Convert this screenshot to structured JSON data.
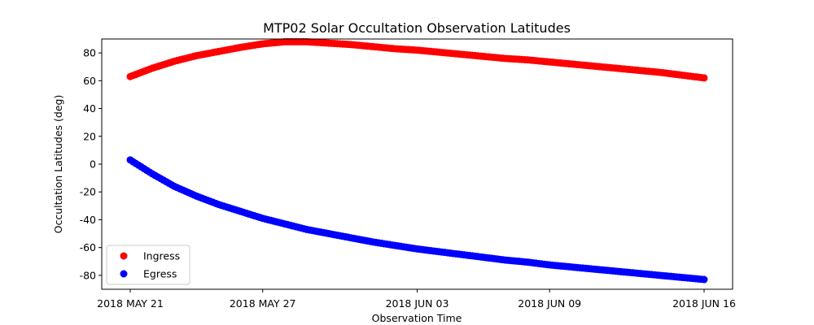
{
  "chart_data": {
    "type": "scatter",
    "title": "MTP02 Solar Occultation Observation Latitudes",
    "xlabel": "Observation Time",
    "ylabel": "Occultation Latitudes (deg)",
    "x_range": [
      "2018-05-21",
      "2018-06-16"
    ],
    "ylim": [
      -90,
      90
    ],
    "y_ticks": [
      -80,
      -60,
      -40,
      -20,
      0,
      20,
      40,
      60,
      80
    ],
    "x_ticks": [
      {
        "date": "2018-05-21",
        "label": "2018 MAY 21"
      },
      {
        "date": "2018-05-27",
        "label": "2018 MAY 27"
      },
      {
        "date": "2018-06-03",
        "label": "2018 JUN 03"
      },
      {
        "date": "2018-06-09",
        "label": "2018 JUN 09"
      },
      {
        "date": "2018-06-16",
        "label": "2018 JUN 16"
      }
    ],
    "grid": false,
    "legend_position": "lower-left",
    "series": [
      {
        "name": "Ingress",
        "color": "#ff0000",
        "points": [
          [
            "2018-05-21",
            63
          ],
          [
            "2018-05-22",
            69
          ],
          [
            "2018-05-23",
            74
          ],
          [
            "2018-05-24",
            78
          ],
          [
            "2018-05-25",
            81
          ],
          [
            "2018-05-26",
            84
          ],
          [
            "2018-05-27",
            86.5
          ],
          [
            "2018-05-28",
            88
          ],
          [
            "2018-05-29",
            88
          ],
          [
            "2018-05-30",
            87
          ],
          [
            "2018-05-31",
            86
          ],
          [
            "2018-06-01",
            84.5
          ],
          [
            "2018-06-02",
            83
          ],
          [
            "2018-06-03",
            82
          ],
          [
            "2018-06-04",
            80.5
          ],
          [
            "2018-06-05",
            79
          ],
          [
            "2018-06-06",
            77.5
          ],
          [
            "2018-06-07",
            76
          ],
          [
            "2018-06-08",
            75
          ],
          [
            "2018-06-09",
            73.5
          ],
          [
            "2018-06-10",
            72
          ],
          [
            "2018-06-11",
            70.5
          ],
          [
            "2018-06-12",
            69
          ],
          [
            "2018-06-13",
            67.5
          ],
          [
            "2018-06-14",
            66
          ],
          [
            "2018-06-15",
            64
          ],
          [
            "2018-06-16",
            62
          ]
        ]
      },
      {
        "name": "Egress",
        "color": "#0000ff",
        "points": [
          [
            "2018-05-21",
            3
          ],
          [
            "2018-05-22",
            -7
          ],
          [
            "2018-05-23",
            -16
          ],
          [
            "2018-05-24",
            -23
          ],
          [
            "2018-05-25",
            -29
          ],
          [
            "2018-05-26",
            -34
          ],
          [
            "2018-05-27",
            -39
          ],
          [
            "2018-05-28",
            -43
          ],
          [
            "2018-05-29",
            -47
          ],
          [
            "2018-05-30",
            -50
          ],
          [
            "2018-05-31",
            -53
          ],
          [
            "2018-06-01",
            -56
          ],
          [
            "2018-06-02",
            -58.5
          ],
          [
            "2018-06-03",
            -61
          ],
          [
            "2018-06-04",
            -63
          ],
          [
            "2018-06-05",
            -65
          ],
          [
            "2018-06-06",
            -67
          ],
          [
            "2018-06-07",
            -69
          ],
          [
            "2018-06-08",
            -70.5
          ],
          [
            "2018-06-09",
            -72.5
          ],
          [
            "2018-06-10",
            -74
          ],
          [
            "2018-06-11",
            -75.5
          ],
          [
            "2018-06-12",
            -77
          ],
          [
            "2018-06-13",
            -78.5
          ],
          [
            "2018-06-14",
            -80
          ],
          [
            "2018-06-15",
            -81.5
          ],
          [
            "2018-06-16",
            -83
          ]
        ]
      }
    ]
  }
}
